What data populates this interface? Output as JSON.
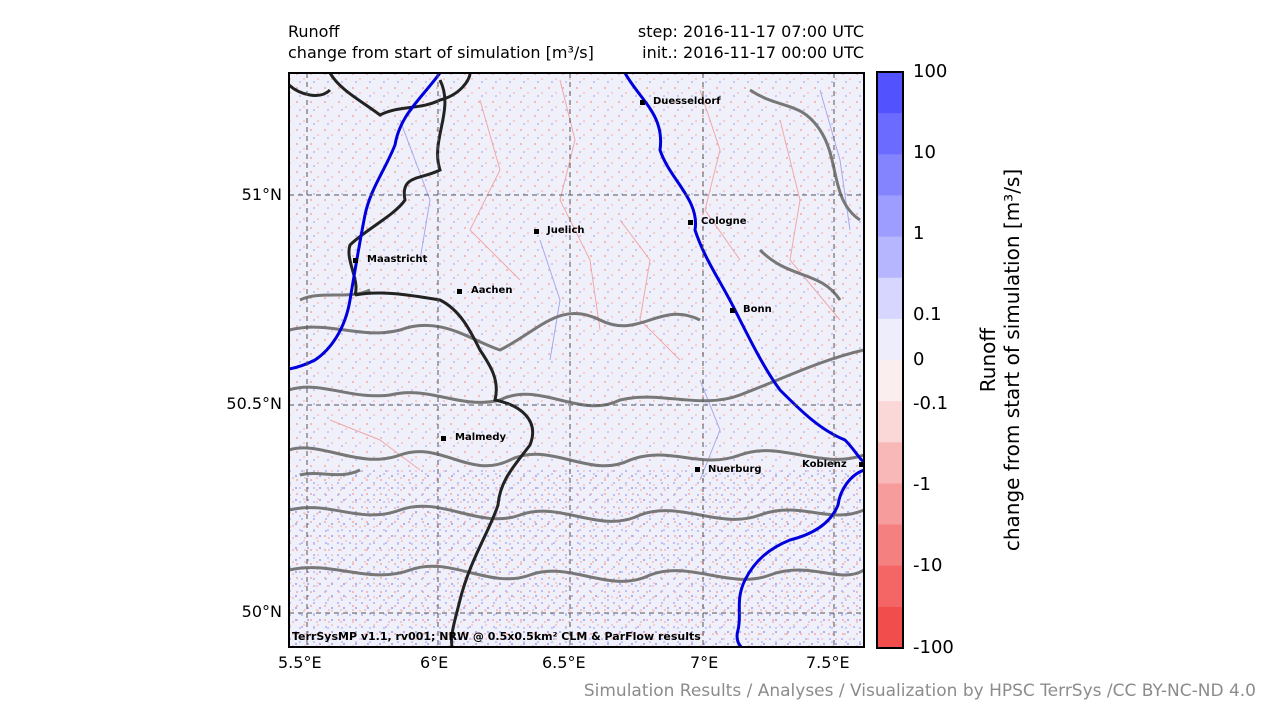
{
  "header": {
    "title_line1": "Runoff",
    "title_line2": "change from start of simulation [m³/s]",
    "step": "step: 2016-11-17 07:00 UTC",
    "init": "init.: 2016-11-17 00:00 UTC"
  },
  "map": {
    "lon_ticks": [
      "5.5°E",
      "6°E",
      "6.5°E",
      "7°E",
      "7.5°E"
    ],
    "lat_ticks": [
      "51°N",
      "50.5°N",
      "50°N"
    ],
    "cities": [
      {
        "name": "Duesseldorf"
      },
      {
        "name": "Cologne"
      },
      {
        "name": "Juelich"
      },
      {
        "name": "Maastricht"
      },
      {
        "name": "Aachen"
      },
      {
        "name": "Bonn"
      },
      {
        "name": "Malmedy"
      },
      {
        "name": "Nuerburg"
      },
      {
        "name": "Koblenz"
      }
    ],
    "model_note": "TerrSysMP v1.1, rv001; NRW @ 0.5x0.5km² CLM & ParFlow results",
    "colors": {
      "river": "#0000dd",
      "border": "#222222",
      "contour": "#777777"
    }
  },
  "colorbar": {
    "ticks": [
      "100",
      "10",
      "1",
      "0.1",
      "0",
      "-0.1",
      "-1",
      "-10",
      "-100"
    ],
    "label_line1": "Runoff",
    "label_line2": "change from start of simulation [m³/s]",
    "colors": [
      "#5252ff",
      "#6b6bff",
      "#8484ff",
      "#9d9dff",
      "#b6b6ff",
      "#d6d6ff",
      "#ededfb",
      "#fbeeee",
      "#fbd8d8",
      "#f8b8b8",
      "#f79c9c",
      "#f58080",
      "#f46666",
      "#f24d4d"
    ]
  },
  "footer": {
    "credit": "Simulation Results / Analyses / Visualization by HPSC TerrSys /CC BY-NC-ND 4.0"
  }
}
